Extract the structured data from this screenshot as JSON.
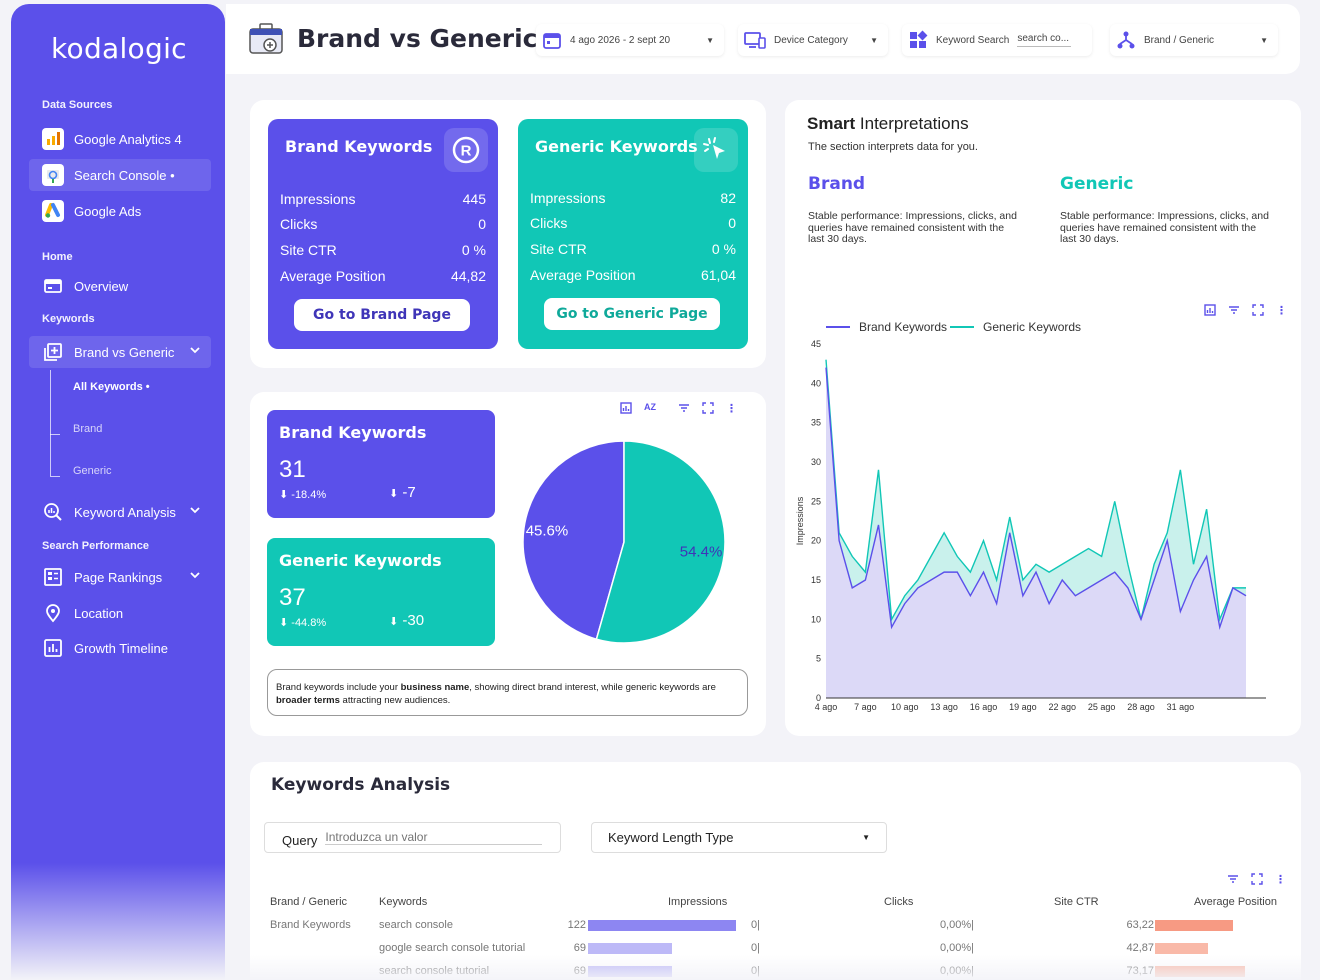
{
  "brand": {
    "logo": "kodalogic"
  },
  "sidebar": {
    "sections": {
      "data_sources": "Data Sources",
      "home": "Home",
      "keywords": "Keywords",
      "search_performance": "Search Performance"
    },
    "items": {
      "ga4": "Google Analytics 4",
      "search_console": "Search Console •",
      "google_ads": "Google Ads",
      "overview": "Overview",
      "brand_vs_generic": "Brand vs Generic",
      "all_keywords": "All Keywords •",
      "brand": "Brand",
      "generic": "Generic",
      "keyword_analysis": "Keyword Analysis",
      "page_rankings": "Page Rankings",
      "location": "Location",
      "growth_timeline": "Growth Timeline"
    }
  },
  "header": {
    "title": "Brand vs Generic",
    "filters": {
      "date": "4 ago 2026 - 2 sept 20",
      "device": "Device Category",
      "keyword_search_label": "Keyword Search",
      "keyword_search_value": "search co...",
      "brand_generic": "Brand / Generic"
    }
  },
  "brand_card": {
    "title": "Brand Keywords",
    "rows": [
      {
        "label": "Impressions",
        "value": "445"
      },
      {
        "label": "Clicks",
        "value": "0"
      },
      {
        "label": "Site CTR",
        "value": "0 %"
      },
      {
        "label": "Average Position",
        "value": "44,82"
      }
    ],
    "button": "Go to Brand Page"
  },
  "generic_card": {
    "title": "Generic Keywords",
    "rows": [
      {
        "label": "Impressions",
        "value": "82"
      },
      {
        "label": "Clicks",
        "value": "0"
      },
      {
        "label": "Site CTR",
        "value": "0 %"
      },
      {
        "label": "Average Position",
        "value": "61,04"
      }
    ],
    "button": "Go to Generic Page"
  },
  "count_cards": {
    "brand": {
      "title": "Brand Keywords",
      "value": "31",
      "pct": "-18.4%",
      "delta": "-7"
    },
    "generic": {
      "title": "Generic Keywords",
      "value": "37",
      "pct": "-44.8%",
      "delta": "-30"
    }
  },
  "pie": {
    "slices": [
      {
        "name": "Brand Keywords",
        "value": 45.6,
        "label": "45.6%",
        "color": "#5b50ea"
      },
      {
        "name": "Generic Keywords",
        "value": 54.4,
        "label": "54.4%",
        "color": "#11c7b6"
      }
    ]
  },
  "note": {
    "part1": "Brand keywords include your ",
    "bold1": "business name",
    "part2": ", showing direct brand interest, while generic keywords are ",
    "bold2": "broader terms",
    "part3": " attracting new audiences."
  },
  "smart": {
    "title_bold": "Smart",
    "title_rest": " Interpretations",
    "subtitle": "The section interprets data for you.",
    "brand_title": "Brand",
    "brand_text": "Stable performance: Impressions, clicks, and queries have remained consistent with the last 30 days.",
    "generic_title": "Generic",
    "generic_text": "Stable performance: Impressions, clicks, and queries have remained consistent with the last 30 days."
  },
  "chart_data": {
    "type": "area",
    "ylabel": "Impressions",
    "ylim": [
      0,
      45
    ],
    "yticks": [
      0,
      5,
      10,
      15,
      20,
      25,
      30,
      35,
      40,
      45
    ],
    "xtick_labels": [
      "4 ago",
      "7 ago",
      "10 ago",
      "13 ago",
      "16 ago",
      "19 ago",
      "22 ago",
      "25 ago",
      "28 ago",
      "31 ago"
    ],
    "legend_position": "top",
    "series": [
      {
        "name": "Brand Keywords",
        "color": "#5b50ea",
        "values": [
          42,
          20,
          14,
          15,
          22,
          9,
          12,
          14,
          15,
          16,
          16,
          13,
          16,
          12,
          21,
          13,
          16,
          12,
          15,
          13,
          14,
          15,
          16,
          14,
          10,
          15,
          20,
          11,
          15,
          18,
          9,
          14,
          13
        ]
      },
      {
        "name": "Generic Keywords",
        "color": "#11c7b6",
        "values": [
          43,
          21,
          18,
          16,
          29,
          10,
          13,
          15,
          18,
          21,
          18,
          16,
          20,
          15,
          23,
          15,
          17,
          16,
          17,
          18,
          19,
          18,
          25,
          17,
          10,
          17,
          21,
          29,
          17,
          24,
          10,
          14,
          14
        ]
      }
    ]
  },
  "keywords_analysis": {
    "title": "Keywords Analysis",
    "query_label": "Query",
    "query_placeholder": "Introduzca un valor",
    "length_type": "Keyword Length Type",
    "columns": [
      "Brand / Generic",
      "Keywords",
      "Impressions",
      "Clicks",
      "Site CTR",
      "Average Position"
    ],
    "rows": [
      {
        "type": "Brand Keywords",
        "keyword": "search console",
        "impressions": 122,
        "impressions_label": "122",
        "clicks": "0",
        "ctr": "0,00%",
        "position": 63.22,
        "position_label": "63,22"
      },
      {
        "type": "",
        "keyword": "google search console tutorial",
        "impressions": 69,
        "impressions_label": "69",
        "clicks": "0",
        "ctr": "0,00%",
        "position": 42.87,
        "position_label": "42,87"
      },
      {
        "type": "",
        "keyword": "search console tutorial",
        "impressions": 69,
        "impressions_label": "69",
        "clicks": "0",
        "ctr": "0,00%",
        "position": 73.17,
        "position_label": "73,17"
      }
    ]
  }
}
